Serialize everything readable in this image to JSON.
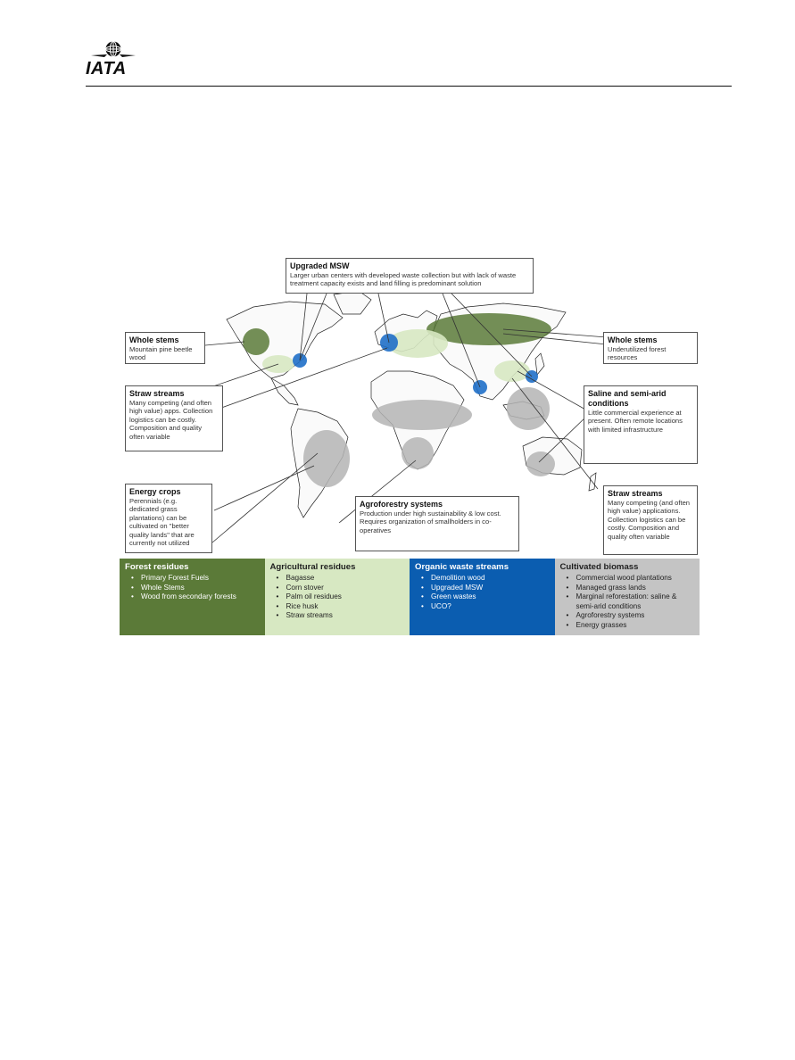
{
  "header": {
    "logo_text": "IATA"
  },
  "callouts": {
    "upgraded_msw": {
      "title": "Upgraded MSW",
      "body": "Larger urban centers with developed waste collection but with lack of waste treatment capacity exists and land filling is predominant solution"
    },
    "whole_stems_left": {
      "title": "Whole stems",
      "body": "Mountain pine beetle wood"
    },
    "whole_stems_right": {
      "title": "Whole stems",
      "body": "Underutilized forest resources"
    },
    "straw_left": {
      "title": "Straw streams",
      "body": "Many competing (and often high value) apps. Collection logistics can be costly. Composition and quality often variable"
    },
    "saline": {
      "title": "Saline and semi-arid conditions",
      "body": "Little commercial experience at present. Often remote locations with limited infrastructure"
    },
    "energy_crops": {
      "title": "Energy crops",
      "body": "Perennials (e.g. dedicated grass plantations) can be cultivated on \"better quality lands\" that are currently not utilized"
    },
    "agroforestry": {
      "title": "Agroforestry systems",
      "body": "Production under high sustainability & low cost. Requires organization of smallholders in co-operatives"
    },
    "straw_right": {
      "title": "Straw streams",
      "body": "Many competing (and often high value) applications. Collection logistics can be costly. Composition and quality often variable"
    }
  },
  "legend": {
    "forest": {
      "title": "Forest residues",
      "items": [
        "Primary Forest Fuels",
        "Whole Stems",
        "Wood from secondary forests"
      ]
    },
    "agri": {
      "title": "Agricultural residues",
      "items": [
        "Bagasse",
        "Corn stover",
        "Palm oil residues",
        "Rice husk",
        "Straw streams"
      ]
    },
    "organic": {
      "title": "Organic waste streams",
      "items": [
        "Demolition wood",
        "Upgraded MSW",
        "Green wastes",
        "UCO?"
      ]
    },
    "cultivated": {
      "title": "Cultivated biomass",
      "items": [
        "Commercial wood plantations",
        "Managed grass lands",
        "Marginal reforestation: saline & semi-arid conditions",
        "Agroforestry systems",
        "Energy grasses"
      ]
    }
  },
  "colors": {
    "forest": "#5b7a38",
    "agri": "#d7e8c2",
    "organic": "#0b5db0",
    "cultivated": "#c4c4c4"
  }
}
